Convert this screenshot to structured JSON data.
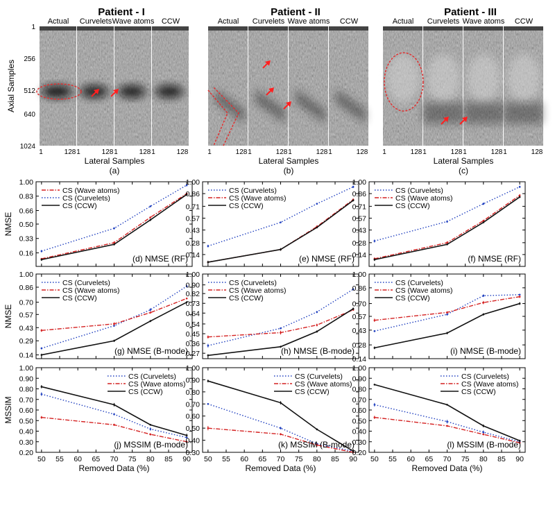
{
  "figure": {
    "patients": [
      {
        "title": "Patient - I",
        "panel_tag": "(a)",
        "columns": [
          "Actual",
          "Curvelets",
          "Wave atoms",
          "CCW"
        ]
      },
      {
        "title": "Patient - II",
        "panel_tag": "(b)",
        "columns": [
          "Actual",
          "Curvelets",
          "Wave atoms",
          "CCW"
        ]
      },
      {
        "title": "Patient - III",
        "panel_tag": "(c)",
        "columns": [
          "Actual",
          "Curvelets",
          "Wave atoms",
          "CCW"
        ]
      }
    ],
    "image_axis": {
      "ylabel": "Axial Samples",
      "xlabel": "Lateral Samples",
      "yticks": [
        "1",
        "256",
        "512",
        "640",
        "1024"
      ],
      "xticks": [
        "1",
        "128"
      ]
    },
    "row_ylabels": [
      "NMSE",
      "NMSE",
      "MSSIM"
    ]
  },
  "colors": {
    "curvelets": "#1f3fbf",
    "wave_atoms": "#d42020",
    "ccw": "#111111",
    "lesion_outline": "#e03030"
  },
  "chart_data": [
    {
      "id": "d",
      "type": "line",
      "title": "(d) NMSE (RF)",
      "xlabel": "",
      "ylabel": "NMSE",
      "x": [
        50,
        70,
        80,
        90
      ],
      "ylim": [
        0.0,
        1.0
      ],
      "yticks": [
        "0.16",
        "0.33",
        "0.50",
        "0.66",
        "0.83",
        "1.00"
      ],
      "legend_position": "top-left",
      "legend": [
        "CS (Wave atoms)",
        "CS (Curvelets)",
        "CS (CCW)"
      ],
      "series": [
        {
          "key": "wave_atoms",
          "values": [
            0.09,
            0.28,
            0.58,
            0.86
          ]
        },
        {
          "key": "curvelets",
          "values": [
            0.18,
            0.45,
            0.71,
            0.96
          ]
        },
        {
          "key": "ccw",
          "values": [
            0.08,
            0.26,
            0.55,
            0.85
          ]
        }
      ]
    },
    {
      "id": "e",
      "type": "line",
      "title": "(e) NMSE (RF)",
      "xlabel": "",
      "ylabel": "",
      "x": [
        50,
        70,
        80,
        90
      ],
      "ylim": [
        0.0,
        1.0
      ],
      "yticks": [
        "0.14",
        "0.28",
        "0.43",
        "0.57",
        "0.71",
        "0.86",
        "1.00"
      ],
      "legend_position": "top-left",
      "legend": [
        "CS (Curvelets)",
        "CS (Wave atoms)",
        "CS (CCW)"
      ],
      "series": [
        {
          "key": "curvelets",
          "values": [
            0.24,
            0.52,
            0.74,
            0.94
          ]
        },
        {
          "key": "wave_atoms",
          "values": [
            0.05,
            0.2,
            0.47,
            0.79
          ]
        },
        {
          "key": "ccw",
          "values": [
            0.05,
            0.2,
            0.46,
            0.78
          ]
        }
      ]
    },
    {
      "id": "f",
      "type": "line",
      "title": "(f) NMSE (RF)",
      "xlabel": "",
      "ylabel": "",
      "x": [
        50,
        70,
        80,
        90
      ],
      "ylim": [
        0.0,
        1.0
      ],
      "yticks": [
        "0.14",
        "0.28",
        "0.43",
        "0.57",
        "0.71",
        "0.86",
        "1.00"
      ],
      "legend_position": "top-left",
      "legend": [
        "CS (Curvelets)",
        "CS (Wave atoms)",
        "CS (CCW)"
      ],
      "series": [
        {
          "key": "curvelets",
          "values": [
            0.3,
            0.53,
            0.74,
            0.94
          ]
        },
        {
          "key": "wave_atoms",
          "values": [
            0.09,
            0.28,
            0.54,
            0.84
          ]
        },
        {
          "key": "ccw",
          "values": [
            0.08,
            0.26,
            0.52,
            0.82
          ]
        }
      ]
    },
    {
      "id": "g",
      "type": "line",
      "title": "(g) NMSE (B-mode)",
      "xlabel": "",
      "ylabel": "NMSE",
      "x": [
        50,
        70,
        80,
        90
      ],
      "ylim": [
        0.1,
        1.0
      ],
      "yticks": [
        "0.14",
        "0.29",
        "0.43",
        "0.57",
        "0.70",
        "0.86",
        "1.00"
      ],
      "legend_position": "top-left",
      "legend": [
        "CS (Curvelets)",
        "CS (Wave atoms)",
        "CS (CCW)"
      ],
      "series": [
        {
          "key": "curvelets",
          "values": [
            0.21,
            0.45,
            0.62,
            0.87
          ]
        },
        {
          "key": "wave_atoms",
          "values": [
            0.4,
            0.47,
            0.59,
            0.74
          ]
        },
        {
          "key": "ccw",
          "values": [
            0.14,
            0.29,
            0.5,
            0.7
          ]
        }
      ]
    },
    {
      "id": "h",
      "type": "line",
      "title": "(h) NMSE (B-mode)",
      "xlabel": "",
      "ylabel": "",
      "x": [
        50,
        70,
        80,
        90
      ],
      "ylim": [
        0.22,
        1.0
      ],
      "yticks": [
        "0.27",
        "0.36",
        "0.45",
        "0.54",
        "0.64",
        "0.73",
        "0.82",
        "0.90",
        "1.00"
      ],
      "legend_position": "top-left",
      "legend": [
        "CS (Curvelets)",
        "CS (Wave atoms)",
        "CS (CCW)"
      ],
      "series": [
        {
          "key": "curvelets",
          "values": [
            0.34,
            0.5,
            0.65,
            0.86
          ]
        },
        {
          "key": "wave_atoms",
          "values": [
            0.42,
            0.46,
            0.53,
            0.67
          ]
        },
        {
          "key": "ccw",
          "values": [
            0.25,
            0.33,
            0.47,
            0.68
          ]
        }
      ]
    },
    {
      "id": "i",
      "type": "line",
      "title": "(i) NMSE (B-mode)",
      "xlabel": "",
      "ylabel": "",
      "x": [
        50,
        70,
        80,
        90
      ],
      "ylim": [
        0.14,
        1.0
      ],
      "yticks": [
        "0.14",
        "0.28",
        "0.43",
        "0.57",
        "0.70",
        "0.86",
        "1.00"
      ],
      "legend_position": "top-left",
      "legend": [
        "CS (Curvelets)",
        "CS (Wave atoms)",
        "CS (CCW)"
      ],
      "series": [
        {
          "key": "curvelets",
          "values": [
            0.42,
            0.59,
            0.78,
            0.79
          ]
        },
        {
          "key": "wave_atoms",
          "values": [
            0.53,
            0.61,
            0.71,
            0.77
          ]
        },
        {
          "key": "ccw",
          "values": [
            0.25,
            0.4,
            0.59,
            0.7
          ]
        }
      ]
    },
    {
      "id": "j",
      "type": "line",
      "title": "(j) MSSIM (B-mode)",
      "xlabel": "Removed Data (%)",
      "ylabel": "MSSIM",
      "x": [
        50,
        70,
        80,
        90
      ],
      "ylim": [
        0.2,
        1.0
      ],
      "yticks": [
        "0.20",
        "0.30",
        "0.40",
        "0.50",
        "0.60",
        "0.70",
        "0.80",
        "0.90",
        "1.00"
      ],
      "xticks": [
        "50",
        "55",
        "60",
        "65",
        "70",
        "75",
        "80",
        "85",
        "90"
      ],
      "legend_position": "top-right",
      "legend": [
        "CS (Curvelets)",
        "CS (Wave atoms)",
        "CS (CCW)"
      ],
      "series": [
        {
          "key": "curvelets",
          "values": [
            0.75,
            0.56,
            0.42,
            0.34
          ]
        },
        {
          "key": "wave_atoms",
          "values": [
            0.53,
            0.46,
            0.37,
            0.3
          ]
        },
        {
          "key": "ccw",
          "values": [
            0.82,
            0.65,
            0.46,
            0.36
          ]
        }
      ]
    },
    {
      "id": "k",
      "type": "line",
      "title": "(k) MSSIM (B-mode)",
      "xlabel": "Removed Data (%)",
      "ylabel": "",
      "x": [
        50,
        70,
        80,
        90
      ],
      "ylim": [
        0.3,
        1.0
      ],
      "yticks": [
        "0.30",
        "0.40",
        "0.50",
        "0.60",
        "0.70",
        "0.80",
        "0.90",
        "1.00"
      ],
      "xticks": [
        "50",
        "55",
        "60",
        "65",
        "70",
        "75",
        "80",
        "85",
        "90"
      ],
      "legend_position": "top-right",
      "legend": [
        "CS (Curvelets)",
        "CS (Wave atoms)",
        "CS (CCW)"
      ],
      "series": [
        {
          "key": "curvelets",
          "values": [
            0.7,
            0.5,
            0.37,
            0.31
          ]
        },
        {
          "key": "wave_atoms",
          "values": [
            0.5,
            0.45,
            0.36,
            0.3
          ]
        },
        {
          "key": "ccw",
          "values": [
            0.89,
            0.71,
            0.49,
            0.31
          ]
        }
      ]
    },
    {
      "id": "l",
      "type": "line",
      "title": "(l) MSSIM (B-mode)",
      "xlabel": "Removed Data (%)",
      "ylabel": "",
      "x": [
        50,
        70,
        80,
        90
      ],
      "ylim": [
        0.2,
        1.0
      ],
      "yticks": [
        "0.20",
        "0.30",
        "0.40",
        "0.50",
        "0.60",
        "0.70",
        "0.80",
        "0.90",
        "1.00"
      ],
      "xticks": [
        "50",
        "55",
        "60",
        "65",
        "70",
        "75",
        "80",
        "85",
        "90"
      ],
      "legend_position": "top-right",
      "legend": [
        "CS (Curvelets)",
        "CS (Wave atoms)",
        "CS (CCW)"
      ],
      "series": [
        {
          "key": "curvelets",
          "values": [
            0.65,
            0.49,
            0.39,
            0.3
          ]
        },
        {
          "key": "wave_atoms",
          "values": [
            0.53,
            0.45,
            0.37,
            0.29
          ]
        },
        {
          "key": "ccw",
          "values": [
            0.84,
            0.65,
            0.45,
            0.31
          ]
        }
      ]
    }
  ]
}
